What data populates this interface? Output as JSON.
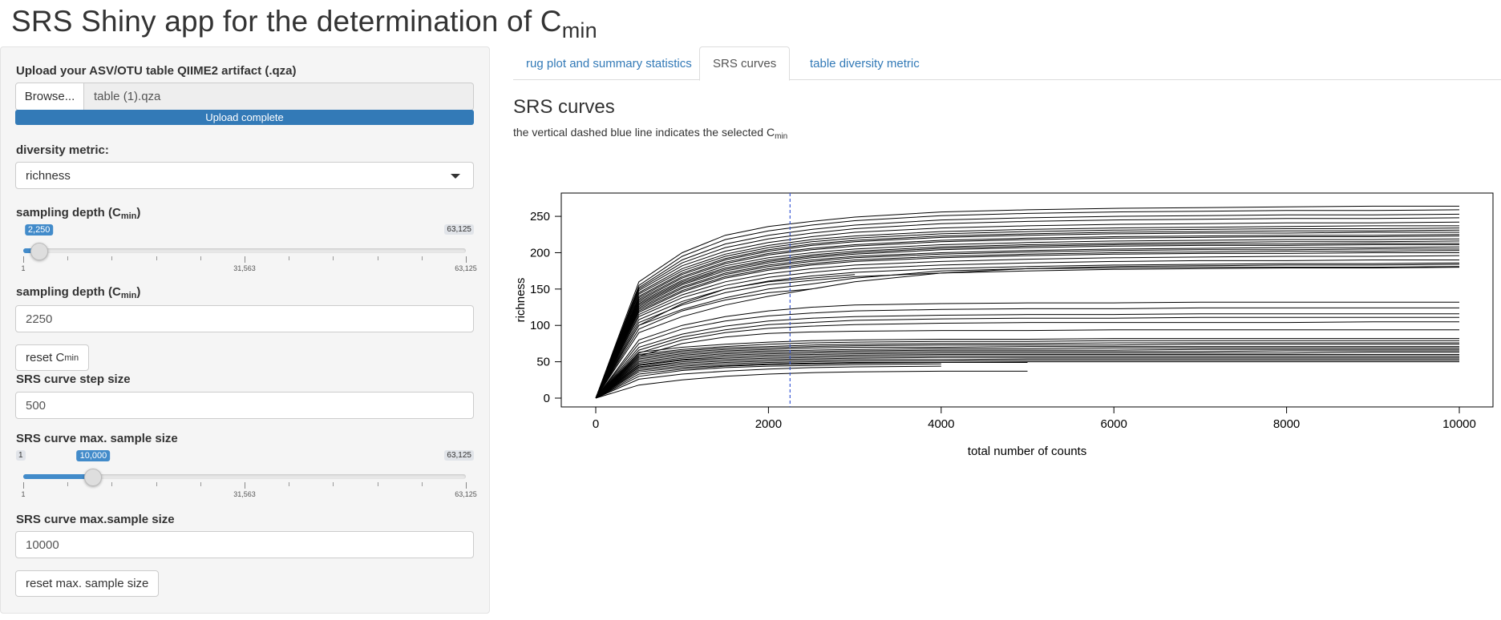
{
  "header": {
    "title_main": "SRS Shiny app for the determination of C",
    "title_sub": "min"
  },
  "sidebar": {
    "upload_label": "Upload your ASV/OTU table QIIME2 artifact (.qza)",
    "browse_label": "Browse...",
    "file_name": "table (1).qza",
    "upload_status": "Upload complete",
    "upload_progress": 1.0,
    "metric_label": "diversity metric:",
    "metric_value": "richness",
    "depth_slider": {
      "label_main": "sampling depth (C",
      "label_sub": "min",
      "label_end": ")",
      "min": 1,
      "max": 63125,
      "value": 2250,
      "value_label": "2,250",
      "max_label": "63,125",
      "tick_labels": [
        "1",
        "31,563",
        "63,125"
      ]
    },
    "depth_input": {
      "label_main": "sampling depth (C",
      "label_sub": "min",
      "label_end": ")",
      "value": "2250"
    },
    "reset_cmin": {
      "main": "reset C",
      "sub": "min"
    },
    "step_label": "SRS curve step size",
    "step_value": "500",
    "max_slider": {
      "label": "SRS curve max. sample size",
      "min": 1,
      "max": 63125,
      "value": 10000,
      "value_label": "10,000",
      "min_label": "1",
      "max_label": "63,125",
      "tick_labels": [
        "1",
        "31,563",
        "63,125"
      ]
    },
    "max_input": {
      "label": "SRS curve max.sample size",
      "value": "10000"
    },
    "reset_max_label": "reset max. sample size"
  },
  "tabs": [
    {
      "label": "rug plot and summary statistics",
      "active": false
    },
    {
      "label": "SRS curves",
      "active": true
    },
    {
      "label": "table diversity metric",
      "active": false
    }
  ],
  "main": {
    "title": "SRS curves",
    "subtitle_main": "the vertical dashed blue line indicates the selected C",
    "subtitle_sub": "min"
  },
  "chart_data": {
    "type": "line",
    "xlabel": "total number of counts",
    "ylabel": "richness",
    "xlim": [
      0,
      10000
    ],
    "ylim": [
      0,
      260
    ],
    "xticks": [
      0,
      2000,
      4000,
      6000,
      8000,
      10000
    ],
    "yticks": [
      0,
      50,
      100,
      150,
      200,
      250
    ],
    "vline": {
      "x": 2250,
      "color": "#3b5bd6",
      "style": "dashed"
    },
    "x": [
      0,
      500,
      1000,
      1500,
      2000,
      2500,
      3000,
      4000,
      5000,
      6000,
      7000,
      8000,
      9000,
      10000
    ],
    "series": [
      {
        "values": [
          0,
          160,
          200,
          224,
          236,
          243,
          249,
          256,
          259,
          261,
          262,
          263,
          264,
          264
        ]
      },
      {
        "values": [
          0,
          155,
          195,
          218,
          230,
          238,
          244,
          251,
          254,
          256,
          257,
          258,
          258,
          259
        ]
      },
      {
        "values": [
          0,
          152,
          190,
          212,
          224,
          232,
          238,
          245,
          248,
          250,
          251,
          252,
          252,
          253
        ]
      },
      {
        "values": [
          0,
          150,
          186,
          207,
          219,
          227,
          233,
          240,
          243,
          245,
          246,
          247,
          247,
          248
        ]
      },
      {
        "values": [
          0,
          148,
          182,
          202,
          214,
          222,
          228,
          234,
          237,
          239,
          240,
          241,
          241,
          242
        ]
      },
      {
        "values": [
          0,
          145,
          178,
          198,
          210,
          218,
          223,
          229,
          232,
          234,
          235,
          236,
          237,
          237
        ]
      },
      {
        "values": [
          0,
          143,
          175,
          195,
          207,
          215,
          220,
          226,
          229,
          231,
          232,
          233,
          233,
          234
        ]
      },
      {
        "values": [
          0,
          140,
          172,
          192,
          204,
          212,
          217,
          223,
          226,
          228,
          229,
          230,
          230,
          231
        ]
      },
      {
        "values": [
          0,
          138,
          170,
          190,
          202,
          210,
          215,
          221,
          224,
          226,
          227,
          227,
          228,
          228
        ]
      },
      {
        "values": [
          0,
          136,
          167,
          187,
          199,
          206,
          211,
          217,
          220,
          222,
          223,
          224,
          224,
          225
        ]
      },
      {
        "values": [
          0,
          134,
          165,
          185,
          197,
          204,
          209,
          215,
          218,
          220,
          221,
          222,
          222,
          223
        ]
      },
      {
        "values": [
          0,
          132,
          162,
          182,
          193,
          200,
          205,
          211,
          214,
          216,
          217,
          218,
          218,
          219
        ]
      },
      {
        "values": [
          0,
          130,
          160,
          179,
          190,
          197,
          202,
          208,
          211,
          213,
          214,
          215,
          215,
          216
        ]
      },
      {
        "values": [
          0,
          128,
          158,
          177,
          188,
          195,
          200,
          206,
          209,
          211,
          212,
          212,
          213,
          213
        ]
      },
      {
        "values": [
          0,
          126,
          156,
          175,
          186,
          193,
          198,
          204,
          207,
          209,
          210,
          210,
          211,
          211
        ]
      },
      {
        "values": [
          0,
          124,
          153,
          172,
          183,
          190,
          195,
          200,
          203,
          205,
          206,
          207,
          207,
          208
        ]
      },
      {
        "values": [
          0,
          122,
          151,
          170,
          181,
          188,
          193,
          198,
          201,
          203,
          204,
          204,
          205,
          205
        ]
      },
      {
        "values": [
          0,
          120,
          148,
          167,
          178,
          185,
          190,
          195,
          198,
          200,
          201,
          202,
          202,
          203
        ]
      },
      {
        "values": [
          0,
          118,
          146,
          165,
          176,
          183,
          188,
          193,
          196,
          198,
          199,
          199,
          200,
          200
        ]
      },
      {
        "values": [
          0,
          115,
          142,
          160,
          171,
          178,
          183,
          188,
          191,
          193,
          194,
          195,
          195,
          196
        ]
      },
      {
        "values": [
          0,
          112,
          138,
          155,
          166,
          173,
          178,
          183,
          186,
          188,
          189,
          189,
          190,
          190
        ]
      },
      {
        "values": [
          0,
          108,
          133,
          150,
          161,
          168,
          173,
          178,
          181,
          183,
          184,
          185,
          185,
          186
        ]
      },
      {
        "values": [
          0,
          104,
          128,
          145,
          156,
          162,
          167,
          172,
          175,
          177,
          178,
          179,
          179,
          180
        ]
      },
      {
        "values": [
          0,
          100,
          122,
          138,
          150,
          157,
          165,
          175,
          178,
          179,
          180,
          180,
          180,
          181
        ]
      },
      {
        "values": [
          0,
          90,
          112,
          128,
          140,
          150,
          160,
          172,
          178,
          181,
          182,
          183,
          183,
          184
        ]
      },
      {
        "values": [
          0,
          80,
          100,
          112,
          120,
          125,
          128,
          130,
          131,
          131,
          132,
          132,
          132,
          132
        ]
      },
      {
        "values": [
          0,
          75,
          95,
          106,
          113,
          117,
          120,
          122,
          123,
          123,
          124,
          124,
          124,
          124
        ]
      },
      {
        "values": [
          0,
          70,
          88,
          99,
          106,
          110,
          112,
          114,
          115,
          115,
          116,
          116,
          116,
          116
        ]
      },
      {
        "values": [
          0,
          66,
          84,
          94,
          101,
          104,
          107,
          109,
          110,
          110,
          111,
          111,
          111,
          111
        ]
      },
      {
        "values": [
          0,
          62,
          80,
          90,
          96,
          99,
          101,
          103,
          104,
          104,
          104,
          104,
          105,
          105
        ]
      },
      {
        "values": [
          0,
          58,
          75,
          84,
          89,
          91,
          92,
          93,
          93,
          94,
          94,
          94,
          94,
          94
        ]
      },
      {
        "values": [
          0,
          63,
          70,
          74,
          77,
          79,
          80,
          81,
          81,
          82,
          82,
          82,
          82,
          82
        ]
      },
      {
        "values": [
          0,
          60,
          67,
          71,
          74,
          76,
          77,
          78,
          78,
          79,
          79,
          79,
          79,
          79
        ]
      },
      {
        "values": [
          0,
          58,
          65,
          69,
          71,
          73,
          74,
          75,
          75,
          76,
          76,
          76,
          76,
          76
        ]
      },
      {
        "values": [
          0,
          56,
          63,
          67,
          69,
          71,
          72,
          73,
          73,
          73,
          74,
          74,
          74,
          74
        ]
      },
      {
        "values": [
          0,
          54,
          61,
          65,
          67,
          69,
          70,
          70,
          71,
          71,
          71,
          71,
          71,
          71
        ]
      },
      {
        "values": [
          0,
          52,
          59,
          63,
          65,
          66,
          67,
          68,
          68,
          69,
          69,
          69,
          69,
          69
        ]
      },
      {
        "values": [
          0,
          50,
          57,
          61,
          63,
          64,
          65,
          66,
          66,
          66,
          67,
          67,
          67,
          67
        ]
      },
      {
        "values": [
          0,
          48,
          55,
          59,
          61,
          62,
          63,
          64,
          64,
          64,
          64,
          65,
          65,
          65
        ]
      },
      {
        "values": [
          0,
          46,
          53,
          57,
          59,
          60,
          61,
          62,
          62,
          62,
          62,
          62,
          63,
          63
        ]
      },
      {
        "values": [
          0,
          45,
          52,
          55,
          57,
          58,
          59,
          60,
          60,
          60,
          60,
          60,
          60,
          60
        ]
      },
      {
        "values": [
          0,
          43,
          50,
          53,
          55,
          56,
          57,
          58,
          58,
          58,
          58,
          58,
          58,
          58
        ]
      },
      {
        "values": [
          0,
          42,
          48,
          51,
          53,
          54,
          55,
          56,
          56,
          56,
          56,
          56,
          56,
          56
        ]
      },
      {
        "values": [
          0,
          40,
          46,
          49,
          51,
          52,
          53,
          53,
          54,
          54,
          54,
          54,
          54,
          54
        ]
      },
      {
        "values": [
          0,
          38,
          44,
          47,
          49,
          50,
          51,
          51,
          52,
          52,
          52,
          52,
          52,
          52
        ]
      },
      {
        "values": [
          0,
          36,
          42,
          45,
          47,
          48,
          49,
          49,
          50,
          50,
          50,
          50,
          50,
          50
        ]
      },
      {
        "values": [
          0,
          33,
          40,
          44,
          46,
          47,
          48,
          49,
          49,
          null,
          null,
          null,
          null,
          null
        ]
      },
      {
        "values": [
          0,
          30,
          38,
          42,
          44,
          45,
          46,
          47,
          null,
          null,
          null,
          null,
          null,
          null
        ]
      },
      {
        "values": [
          0,
          26,
          33,
          37,
          40,
          42,
          43,
          44,
          null,
          null,
          null,
          null,
          null,
          null
        ]
      },
      {
        "values": [
          0,
          18,
          25,
          30,
          33,
          35,
          36,
          37,
          37,
          null,
          null,
          null,
          null,
          null
        ]
      },
      {
        "values": [
          0,
          100,
          130,
          150,
          160,
          165,
          170,
          null,
          null,
          null,
          null,
          null,
          null,
          null
        ]
      },
      {
        "values": [
          0,
          95,
          120,
          135,
          145,
          150,
          null,
          null,
          null,
          null,
          null,
          null,
          null,
          null
        ]
      }
    ]
  }
}
